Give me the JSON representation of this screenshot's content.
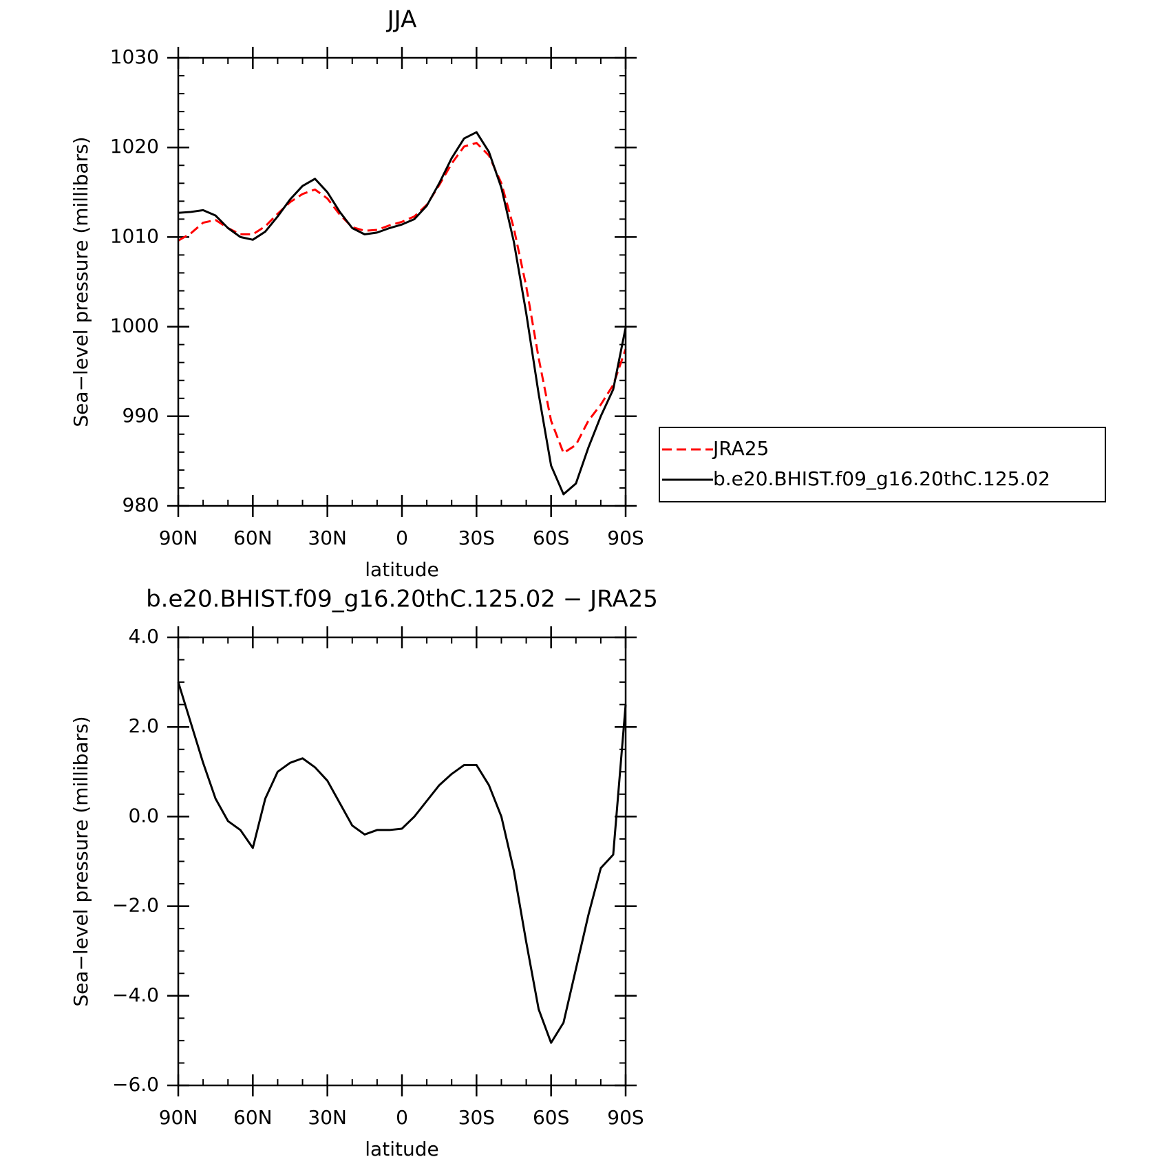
{
  "chart_data": [
    {
      "type": "line",
      "title": "JJA",
      "x_label": "latitude",
      "y_label": "Sea−level pressure (millibars)",
      "x": [
        90,
        85,
        80,
        75,
        70,
        65,
        60,
        55,
        50,
        45,
        40,
        35,
        30,
        25,
        20,
        15,
        10,
        5,
        0,
        -5,
        -10,
        -15,
        -20,
        -25,
        -30,
        -35,
        -40,
        -45,
        -50,
        -55,
        -60,
        -65,
        -70,
        -75,
        -80,
        -85,
        -90
      ],
      "series": [
        {
          "name": "JRA25",
          "color": "#ff0000",
          "line_style": "dashed",
          "values": [
            1009.6,
            1010.4,
            1011.6,
            1011.9,
            1011.0,
            1010.3,
            1010.3,
            1011.2,
            1012.6,
            1013.9,
            1014.8,
            1015.3,
            1014.3,
            1012.5,
            1011.1,
            1010.7,
            1010.8,
            1011.3,
            1011.7,
            1012.3,
            1013.6,
            1015.8,
            1018.2,
            1020.1,
            1020.5,
            1019.1,
            1016.0,
            1011.0,
            1004.5,
            996.5,
            989.5,
            985.9,
            986.8,
            989.5,
            991.3,
            993.5,
            997.5
          ]
        },
        {
          "name": "b.e20.BHIST.f09_g16.20thC.125.02",
          "color": "#000000",
          "line_style": "solid",
          "values": [
            1012.7,
            1012.8,
            1013.0,
            1012.4,
            1011.0,
            1010.0,
            1009.7,
            1010.6,
            1012.3,
            1014.2,
            1015.7,
            1016.5,
            1015.0,
            1012.8,
            1011.0,
            1010.3,
            1010.5,
            1011.0,
            1011.4,
            1012.0,
            1013.5,
            1016.0,
            1018.8,
            1021.0,
            1021.7,
            1019.5,
            1015.5,
            1009.5,
            1001.5,
            992.5,
            984.5,
            981.3,
            982.5,
            986.5,
            990.0,
            993.0,
            999.9
          ]
        }
      ],
      "xlim": [
        90,
        -90
      ],
      "xticks": [
        {
          "value": 90,
          "label": "90N"
        },
        {
          "value": 60,
          "label": "60N"
        },
        {
          "value": 30,
          "label": "30N"
        },
        0,
        {
          "value": -30,
          "label": "30S"
        },
        {
          "value": -60,
          "label": "60S"
        },
        {
          "value": -90,
          "label": "90S"
        }
      ],
      "ylim": [
        980,
        1030
      ],
      "yticks": [
        980,
        990,
        1000,
        1010,
        1020,
        1030
      ]
    },
    {
      "type": "line",
      "title": "b.e20.BHIST.f09_g16.20thC.125.02 − JRA25",
      "x_label": "latitude",
      "y_label": "Sea−level pressure (millibars)",
      "x": [
        90,
        85,
        80,
        75,
        70,
        65,
        60,
        55,
        50,
        45,
        40,
        35,
        30,
        25,
        20,
        15,
        10,
        5,
        0,
        -5,
        -10,
        -15,
        -20,
        -25,
        -30,
        -35,
        -40,
        -45,
        -50,
        -55,
        -60,
        -65,
        -70,
        -75,
        -80,
        -85,
        -90
      ],
      "series": [
        {
          "color": "#000000",
          "line_style": "solid",
          "values": [
            3.0,
            2.1,
            1.2,
            0.4,
            -0.1,
            -0.3,
            -0.7,
            0.4,
            1.0,
            1.2,
            1.3,
            1.1,
            0.8,
            0.3,
            -0.2,
            -0.4,
            -0.3,
            -0.3,
            -0.27,
            0.0,
            0.35,
            0.7,
            0.95,
            1.15,
            1.15,
            0.7,
            0.0,
            -1.2,
            -2.8,
            -4.3,
            -5.05,
            -4.6,
            -3.4,
            -2.2,
            -1.15,
            -0.85,
            2.5
          ]
        }
      ],
      "xlim": [
        90,
        -90
      ],
      "xticks": [
        {
          "value": 90,
          "label": "90N"
        },
        {
          "value": 60,
          "label": "60N"
        },
        {
          "value": 30,
          "label": "30N"
        },
        0,
        {
          "value": -30,
          "label": "30S"
        },
        {
          "value": -60,
          "label": "60S"
        },
        {
          "value": -90,
          "label": "90S"
        }
      ],
      "ylim": [
        -6,
        4
      ],
      "yticks": [
        {
          "value": -6,
          "label": "−6.0"
        },
        {
          "value": -4,
          "label": "−4.0"
        },
        {
          "value": -2,
          "label": "−2.0"
        },
        {
          "value": 0,
          "label": "0.0"
        },
        {
          "value": 2,
          "label": "2.0"
        },
        {
          "value": 4,
          "label": "4.0"
        }
      ]
    }
  ]
}
